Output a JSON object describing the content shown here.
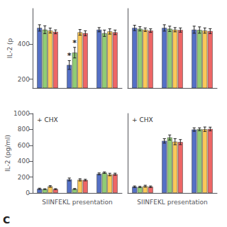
{
  "chart_data": [
    {
      "type": "bar",
      "ylabel": "IL-2 (p",
      "categories": [
        null,
        null,
        null
      ],
      "ylim": [
        150,
        600
      ],
      "yticks": [
        200,
        400
      ],
      "grid": false,
      "tick_labels": "y",
      "series": [
        {
          "values": [
            490,
            280,
            480
          ],
          "errors": [
            18,
            25,
            12
          ],
          "point_labels": [
            null,
            "*",
            null
          ]
        },
        {
          "values": [
            480,
            350,
            460
          ],
          "errors": [
            22,
            30,
            18
          ],
          "point_labels": [
            null,
            "*",
            null
          ]
        },
        {
          "values": [
            475,
            465,
            470
          ],
          "errors": [
            14,
            16,
            15
          ]
        },
        {
          "values": [
            468,
            460,
            465
          ],
          "errors": [
            11,
            14,
            13
          ]
        }
      ]
    },
    {
      "type": "bar",
      "categories": [
        null,
        null,
        null
      ],
      "ylim": [
        150,
        600
      ],
      "grid": false,
      "tick_labels": false,
      "series": [
        {
          "values": [
            490,
            490,
            480
          ],
          "errors": [
            15,
            18,
            20
          ]
        },
        {
          "values": [
            485,
            485,
            478
          ],
          "errors": [
            12,
            15,
            18
          ]
        },
        {
          "values": [
            480,
            480,
            475
          ],
          "errors": [
            10,
            12,
            15
          ]
        },
        {
          "values": [
            475,
            478,
            472
          ],
          "errors": [
            10,
            12,
            14
          ]
        }
      ]
    },
    {
      "type": "bar",
      "ylabel": "IL-2 (pg/ml)",
      "xlabel": "SIINFEKL presentation",
      "annotation": "+ CHX",
      "panel_label": "C",
      "categories": [
        null,
        null,
        null
      ],
      "ylim": [
        0,
        1000
      ],
      "yticks": [
        0,
        200,
        400,
        600,
        800,
        1000
      ],
      "grid": false,
      "tick_labels": "y",
      "series": [
        {
          "values": [
            52,
            170,
            240
          ],
          "errors": [
            8,
            18,
            12
          ]
        },
        {
          "values": [
            48,
            50,
            255
          ],
          "errors": [
            5,
            6,
            10
          ]
        },
        {
          "values": [
            82,
            165,
            232
          ],
          "errors": [
            10,
            14,
            16
          ]
        },
        {
          "values": [
            48,
            162,
            236
          ],
          "errors": [
            6,
            10,
            13
          ]
        }
      ]
    },
    {
      "type": "bar",
      "xlabel": "SIINFEKL presentation",
      "annotation": "+ CHX",
      "categories": [
        null,
        null,
        null
      ],
      "ylim": [
        0,
        1000
      ],
      "grid": false,
      "tick_labels": false,
      "series": [
        {
          "values": [
            78,
            655,
            798
          ],
          "errors": [
            10,
            28,
            22
          ]
        },
        {
          "values": [
            75,
            698,
            802
          ],
          "errors": [
            8,
            32,
            18
          ]
        },
        {
          "values": [
            85,
            645,
            802
          ],
          "errors": [
            12,
            38,
            28
          ]
        },
        {
          "values": [
            78,
            640,
            805
          ],
          "errors": [
            10,
            32,
            23
          ]
        }
      ]
    }
  ]
}
